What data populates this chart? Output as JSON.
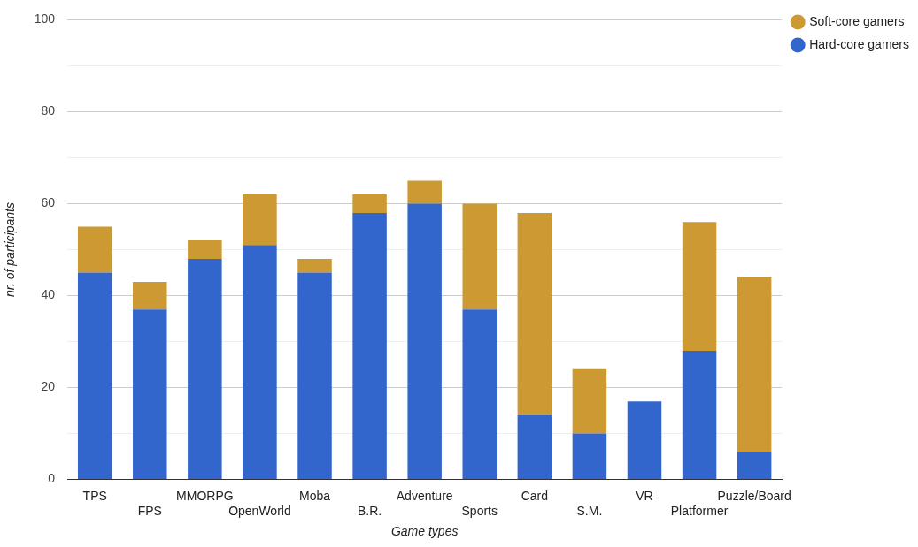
{
  "chart_data": {
    "type": "bar",
    "stacked": true,
    "xlabel": "Game types",
    "ylabel": "nr. of participants",
    "categories": [
      "TPS",
      "FPS",
      "MMORPG",
      "OpenWorld",
      "Moba",
      "B.R.",
      "Adventure",
      "Sports",
      "Card",
      "S.M.",
      "VR",
      "Platformer",
      "Puzzle/Board"
    ],
    "series": [
      {
        "name": "Hard-core gamers",
        "color": "#3366cc",
        "values": [
          45,
          37,
          48,
          51,
          45,
          58,
          60,
          37,
          14,
          10,
          17,
          28,
          6
        ]
      },
      {
        "name": "Soft-core gamers",
        "color": "#cc9933",
        "values": [
          10,
          6,
          4,
          11,
          3,
          4,
          5,
          23,
          44,
          14,
          0,
          28,
          38
        ]
      }
    ],
    "ylim": [
      0,
      100
    ],
    "yticks": [
      0,
      {
        "value": 10,
        "label": null
      },
      20,
      {
        "value": 30,
        "label": null
      },
      40,
      {
        "value": 50,
        "label": null
      },
      60,
      {
        "value": 70,
        "label": null
      },
      80,
      {
        "value": 90,
        "label": null
      },
      100
    ],
    "grid": "y",
    "legend": "top right"
  }
}
